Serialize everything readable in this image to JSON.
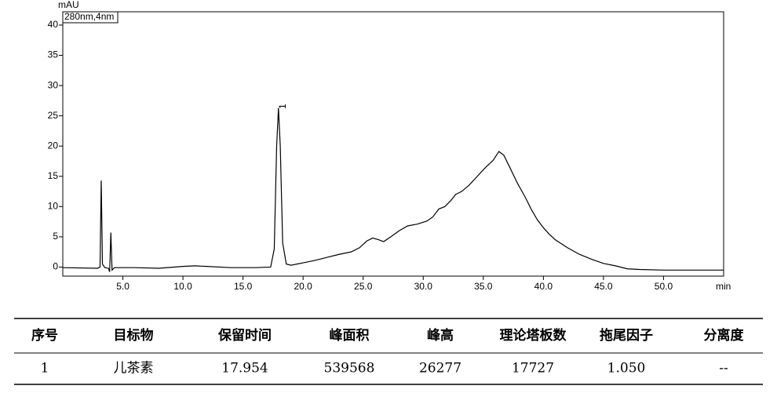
{
  "chart_data": {
    "type": "line",
    "y_unit": "mAU",
    "x_unit": "min",
    "legend": "280nm,4nm",
    "color": "#000000",
    "x": [
      0,
      2.9,
      3.1,
      3.2,
      3.3,
      3.5,
      3.8,
      3.9,
      4.0,
      4.1,
      4.3,
      6,
      8,
      10,
      11,
      12,
      14,
      16,
      17.3,
      17.6,
      17.8,
      17.95,
      18.1,
      18.3,
      18.6,
      19,
      20,
      21,
      22,
      23,
      24,
      24.7,
      25.3,
      25.8,
      26.3,
      26.7,
      27.3,
      28,
      28.7,
      29.5,
      30.3,
      30.8,
      31.3,
      31.8,
      32.3,
      32.7,
      33.2,
      33.8,
      34.5,
      35.2,
      35.8,
      36.3,
      36.7,
      37.2,
      37.8,
      38.5,
      39,
      39.5,
      40,
      40.5,
      41,
      42,
      43,
      44,
      45,
      46,
      47,
      48,
      50,
      52,
      55
    ],
    "values": [
      -0.1,
      -0.2,
      0,
      14.3,
      0.5,
      -0.1,
      -0.2,
      -0.8,
      5.7,
      -0.5,
      -0.1,
      -0.1,
      -0.2,
      0.1,
      0.2,
      0.1,
      -0.1,
      -0.1,
      0,
      3,
      20,
      26.3,
      20,
      4,
      0.5,
      0.3,
      0.7,
      1.1,
      1.6,
      2.1,
      2.5,
      3.2,
      4.3,
      4.8,
      4.5,
      4.2,
      5,
      6,
      6.8,
      7.1,
      7.6,
      8.3,
      9.6,
      10,
      11,
      12,
      12.5,
      13.5,
      15,
      16.5,
      17.6,
      19.1,
      18.5,
      16.5,
      14,
      11.5,
      9.5,
      7.8,
      6.5,
      5.4,
      4.5,
      3.2,
      2.1,
      1.3,
      0.6,
      0.2,
      -0.3,
      -0.4,
      -0.5,
      -0.5,
      -0.5
    ],
    "annotations": [
      {
        "x": 17.954,
        "y": 26.3,
        "text": "1"
      }
    ],
    "xlim": [
      0,
      55
    ],
    "ylim": [
      -1.5,
      42.2
    ],
    "xticks": [
      {
        "value": 5,
        "label": "5.0"
      },
      {
        "value": 10,
        "label": "10.0"
      },
      {
        "value": 15,
        "label": "15.0"
      },
      {
        "value": 20,
        "label": "20.0"
      },
      {
        "value": 25,
        "label": "25.0"
      },
      {
        "value": 30,
        "label": "30.0"
      },
      {
        "value": 35,
        "label": "35.0"
      },
      {
        "value": 40,
        "label": "40.0"
      },
      {
        "value": 45,
        "label": "45.0"
      },
      {
        "value": 50,
        "label": "50.0"
      }
    ],
    "yticks": [
      0,
      5,
      10,
      15,
      20,
      25,
      30,
      35,
      40
    ]
  },
  "table": {
    "columns": [
      "序号",
      "目标物",
      "保留时间",
      "峰面积",
      "峰高",
      "理论塔板数",
      "拖尾因子",
      "分离度"
    ],
    "rows": [
      [
        "1",
        "儿茶素",
        "17.954",
        "539568",
        "26277",
        "17727",
        "1.050",
        "--"
      ]
    ]
  }
}
